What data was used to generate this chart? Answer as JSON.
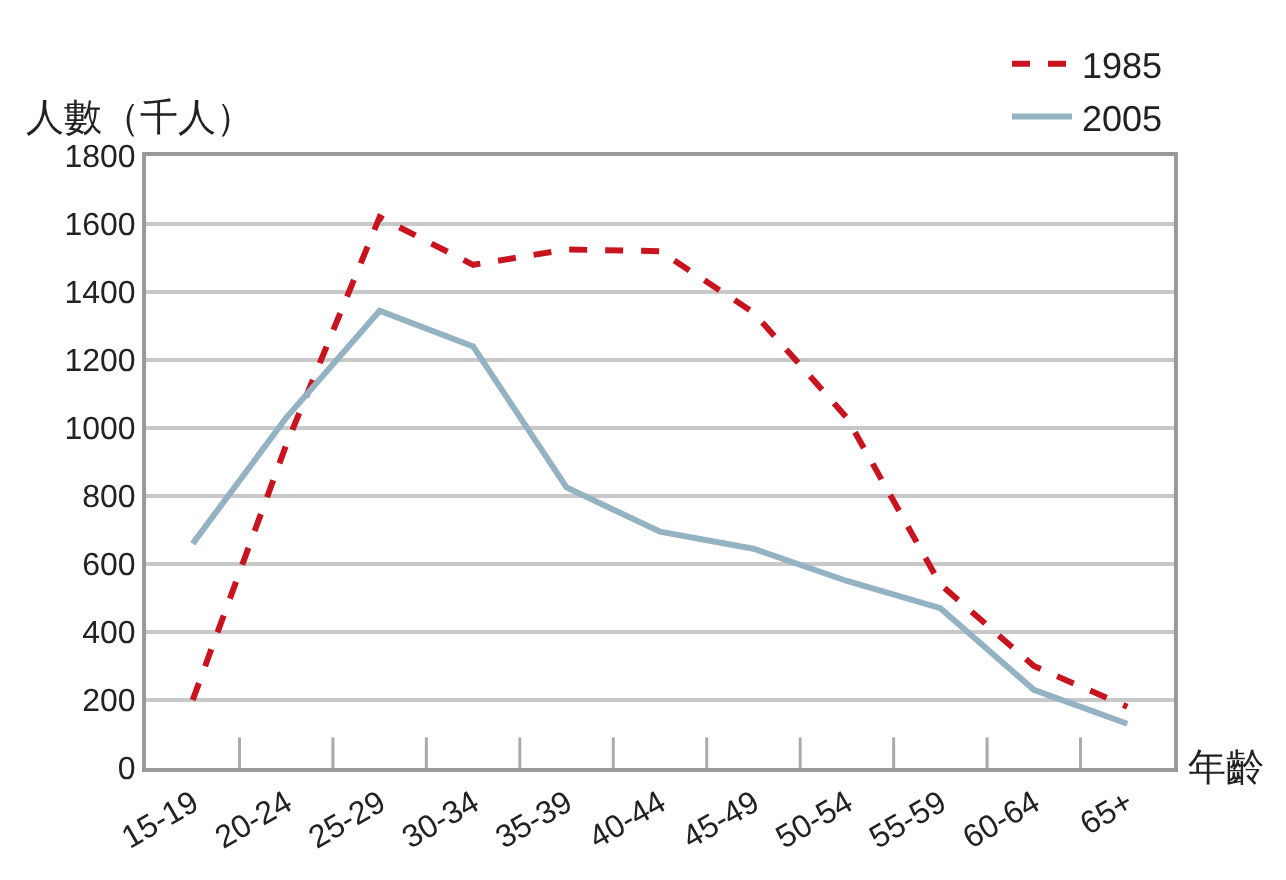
{
  "chart_data": {
    "type": "line",
    "ylabel": "人數（千人）",
    "xlabel": "年齡",
    "categories": [
      "15-19",
      "20-24",
      "25-29",
      "30-34",
      "35-39",
      "40-44",
      "45-49",
      "50-54",
      "55-59",
      "60-64",
      "65+"
    ],
    "series": [
      {
        "name": "1985",
        "color": "#c8141e",
        "line_style": "dashed",
        "values": [
          200,
          950,
          1620,
          1480,
          1525,
          1520,
          1340,
          1030,
          540,
          300,
          180
        ]
      },
      {
        "name": "2005",
        "color": "#93b3c2",
        "line_style": "solid",
        "values": [
          660,
          1030,
          1345,
          1240,
          825,
          695,
          645,
          550,
          470,
          230,
          130
        ]
      }
    ],
    "ylim": [
      0,
      1800
    ],
    "yticks": [
      0,
      200,
      400,
      600,
      800,
      1000,
      1200,
      1400,
      1600,
      1800
    ],
    "grid": "y",
    "legend": "top right",
    "marker": "none"
  }
}
